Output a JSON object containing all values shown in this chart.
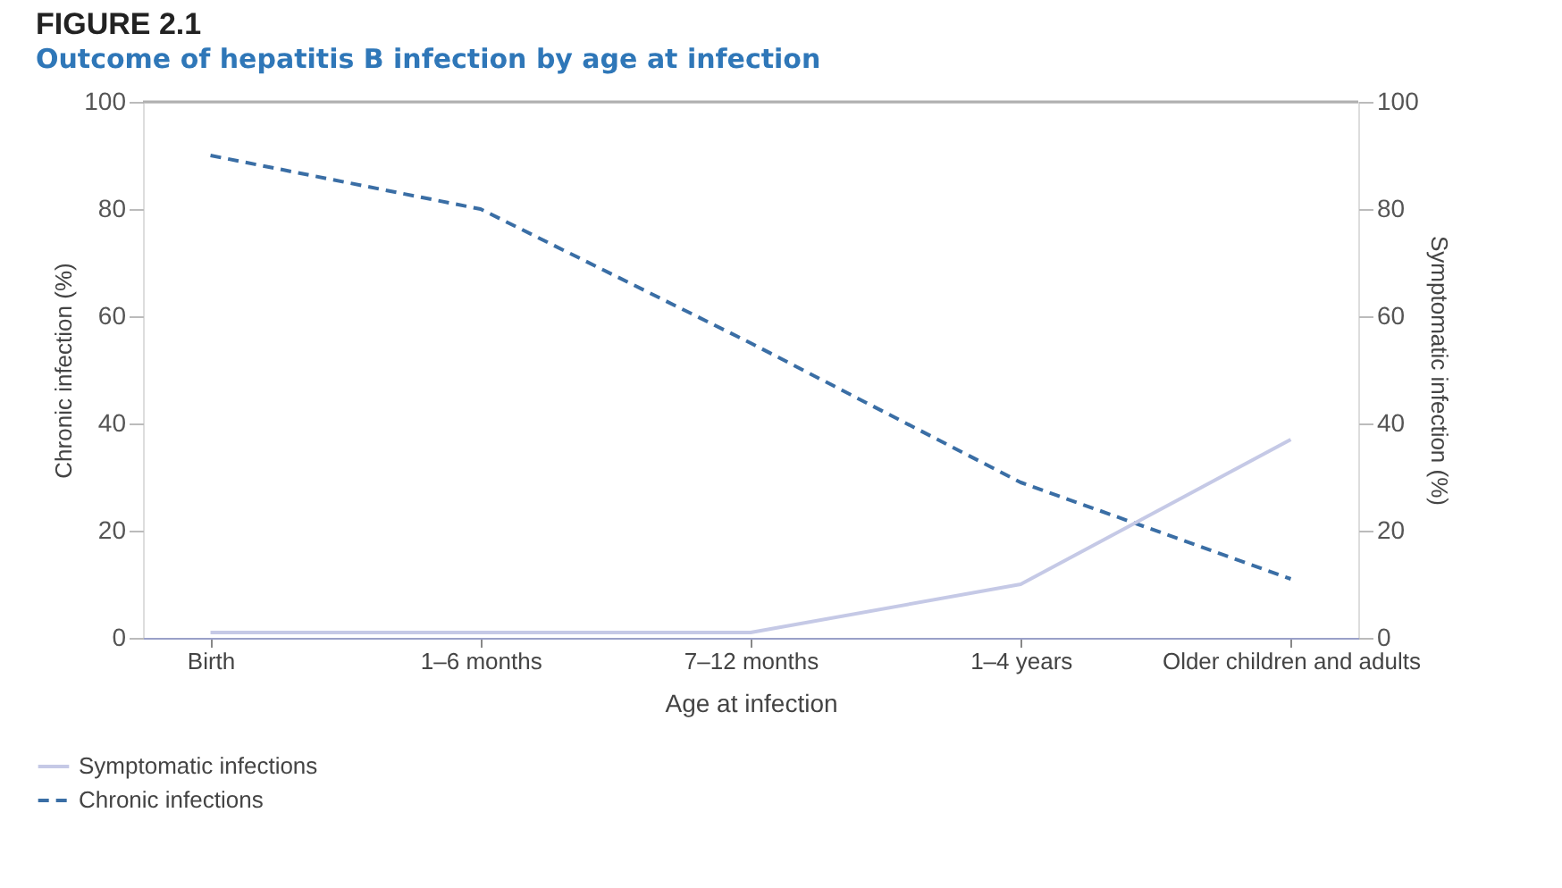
{
  "chart_data": {
    "type": "line",
    "title": "FIGURE 2.1",
    "subtitle": "Outcome of hepatitis B infection by age at infection",
    "xlabel": "Age at infection",
    "ylabel": "Chronic infection (%)",
    "y2label": "Symptomatic infection (%)",
    "categories": [
      "Birth",
      "1–6 months",
      "7–12 months",
      "1–4 years",
      "Older children and adults"
    ],
    "series": [
      {
        "name": "Symptomatic infections",
        "color": "#c5c9e6",
        "values": [
          1,
          1,
          1,
          10,
          37
        ],
        "axis": "y2",
        "line_style": "solid"
      },
      {
        "name": "Chronic infections",
        "color": "#3a6ea5",
        "values": [
          90,
          80,
          55,
          29,
          11
        ],
        "axis": "y",
        "line_style": "dashed"
      }
    ],
    "ylim": [
      0,
      100
    ],
    "yticks": [
      0,
      20,
      40,
      60,
      80,
      100
    ],
    "y2lim": [
      0,
      100
    ],
    "y2ticks": [
      0,
      20,
      40,
      60,
      80,
      100
    ],
    "ref_lines": [
      {
        "axis": "y",
        "value": 100,
        "label": null,
        "color": "#b0b0b0"
      }
    ],
    "grid": false,
    "legend": "bottom left",
    "marker": "none"
  }
}
